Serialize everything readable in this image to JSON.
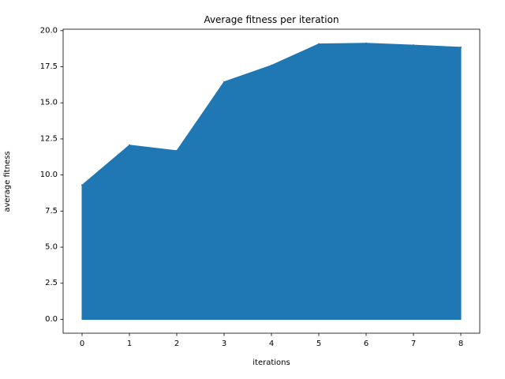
{
  "chart_data": {
    "type": "area",
    "title": "Average fitness per iteration",
    "xlabel": "iterations",
    "ylabel": "average fitness",
    "x": [
      0,
      1,
      2,
      3,
      4,
      5,
      6,
      7,
      8
    ],
    "series": [
      {
        "values": [
          9.3,
          12.07,
          11.68,
          16.45,
          17.6,
          19.08,
          19.13,
          19.0,
          18.85
        ]
      }
    ],
    "xlim": [
      -0.4,
      8.4
    ],
    "ylim": [
      -0.96,
      20.1
    ],
    "xticks": [
      "0",
      "1",
      "2",
      "3",
      "4",
      "5",
      "6",
      "7",
      "8"
    ],
    "yticks": [
      "0.0",
      "2.5",
      "5.0",
      "7.5",
      "10.0",
      "12.5",
      "15.0",
      "17.5",
      "20.0"
    ],
    "grid": false,
    "colors": {
      "fill": "#1f77b4",
      "axes": "#000000",
      "background": "#ffffff"
    }
  }
}
